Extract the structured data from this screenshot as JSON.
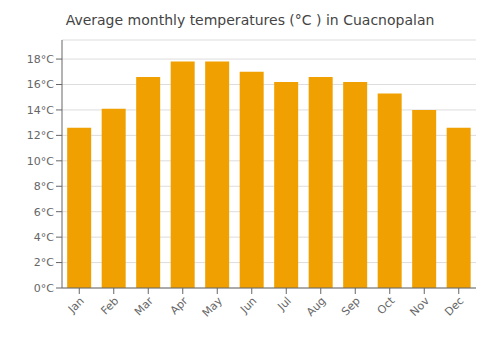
{
  "chart_data": {
    "type": "bar",
    "title": "Average monthly temperatures (°C ) in Cuacnopalan",
    "categories": [
      "Jan",
      "Feb",
      "Mar",
      "Apr",
      "May",
      "Jun",
      "Jul",
      "Aug",
      "Sep",
      "Oct",
      "Nov",
      "Dec"
    ],
    "values": [
      12.6,
      14.1,
      16.6,
      17.8,
      17.8,
      17.0,
      16.2,
      16.6,
      16.2,
      15.3,
      14.0,
      12.6
    ],
    "color": "#F0A000",
    "ylim": [
      0,
      19.5
    ],
    "yticks": [
      {
        "value": 0,
        "label": "0°C"
      },
      {
        "value": 2,
        "label": "2°C"
      },
      {
        "value": 4,
        "label": "4°C"
      },
      {
        "value": 6,
        "label": "6°C"
      },
      {
        "value": 8,
        "label": "8°C"
      },
      {
        "value": 10,
        "label": "10°C"
      },
      {
        "value": 12,
        "label": "12°C"
      },
      {
        "value": 14,
        "label": "14°C"
      },
      {
        "value": 16,
        "label": "16°C"
      },
      {
        "value": 18,
        "label": "18°C"
      }
    ],
    "grid": true
  }
}
